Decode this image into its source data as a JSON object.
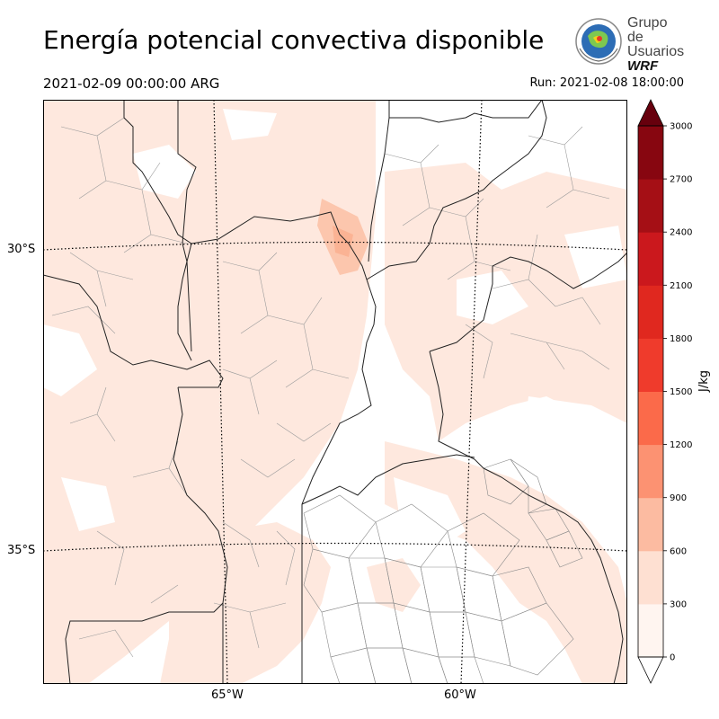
{
  "title": "Energía potencial convectiva disponible",
  "valid_time": "2021-02-09 00:00:00 ARG",
  "run_time": "Run: 2021-02-08 18:00:00",
  "logo": {
    "line1": "Grupo de",
    "line2": "Usuarios",
    "line3": "WRF"
  },
  "map": {
    "lat_labels": [
      "30°S",
      "35°S"
    ],
    "lon_labels": [
      "65°W",
      "60°W"
    ],
    "field": "CAPE",
    "dominant_level": "0-300 J/kg",
    "max_region": "confluence near 30°S 61.5°W, 300-600 J/kg"
  },
  "colorbar": {
    "title": "J/kg",
    "ticks": [
      "0",
      "300",
      "600",
      "900",
      "1200",
      "1500",
      "1800",
      "2100",
      "2400",
      "2700",
      "3000"
    ],
    "colors": [
      "#fff5f0",
      "#fee0d2",
      "#fcbba1",
      "#fc9272",
      "#fb6a4a",
      "#ef3b2c",
      "#e0281f",
      "#cb181d",
      "#a50f15",
      "#870610"
    ],
    "extend_max_color": "#67000d",
    "extend_min_color": "#ffffff"
  }
}
